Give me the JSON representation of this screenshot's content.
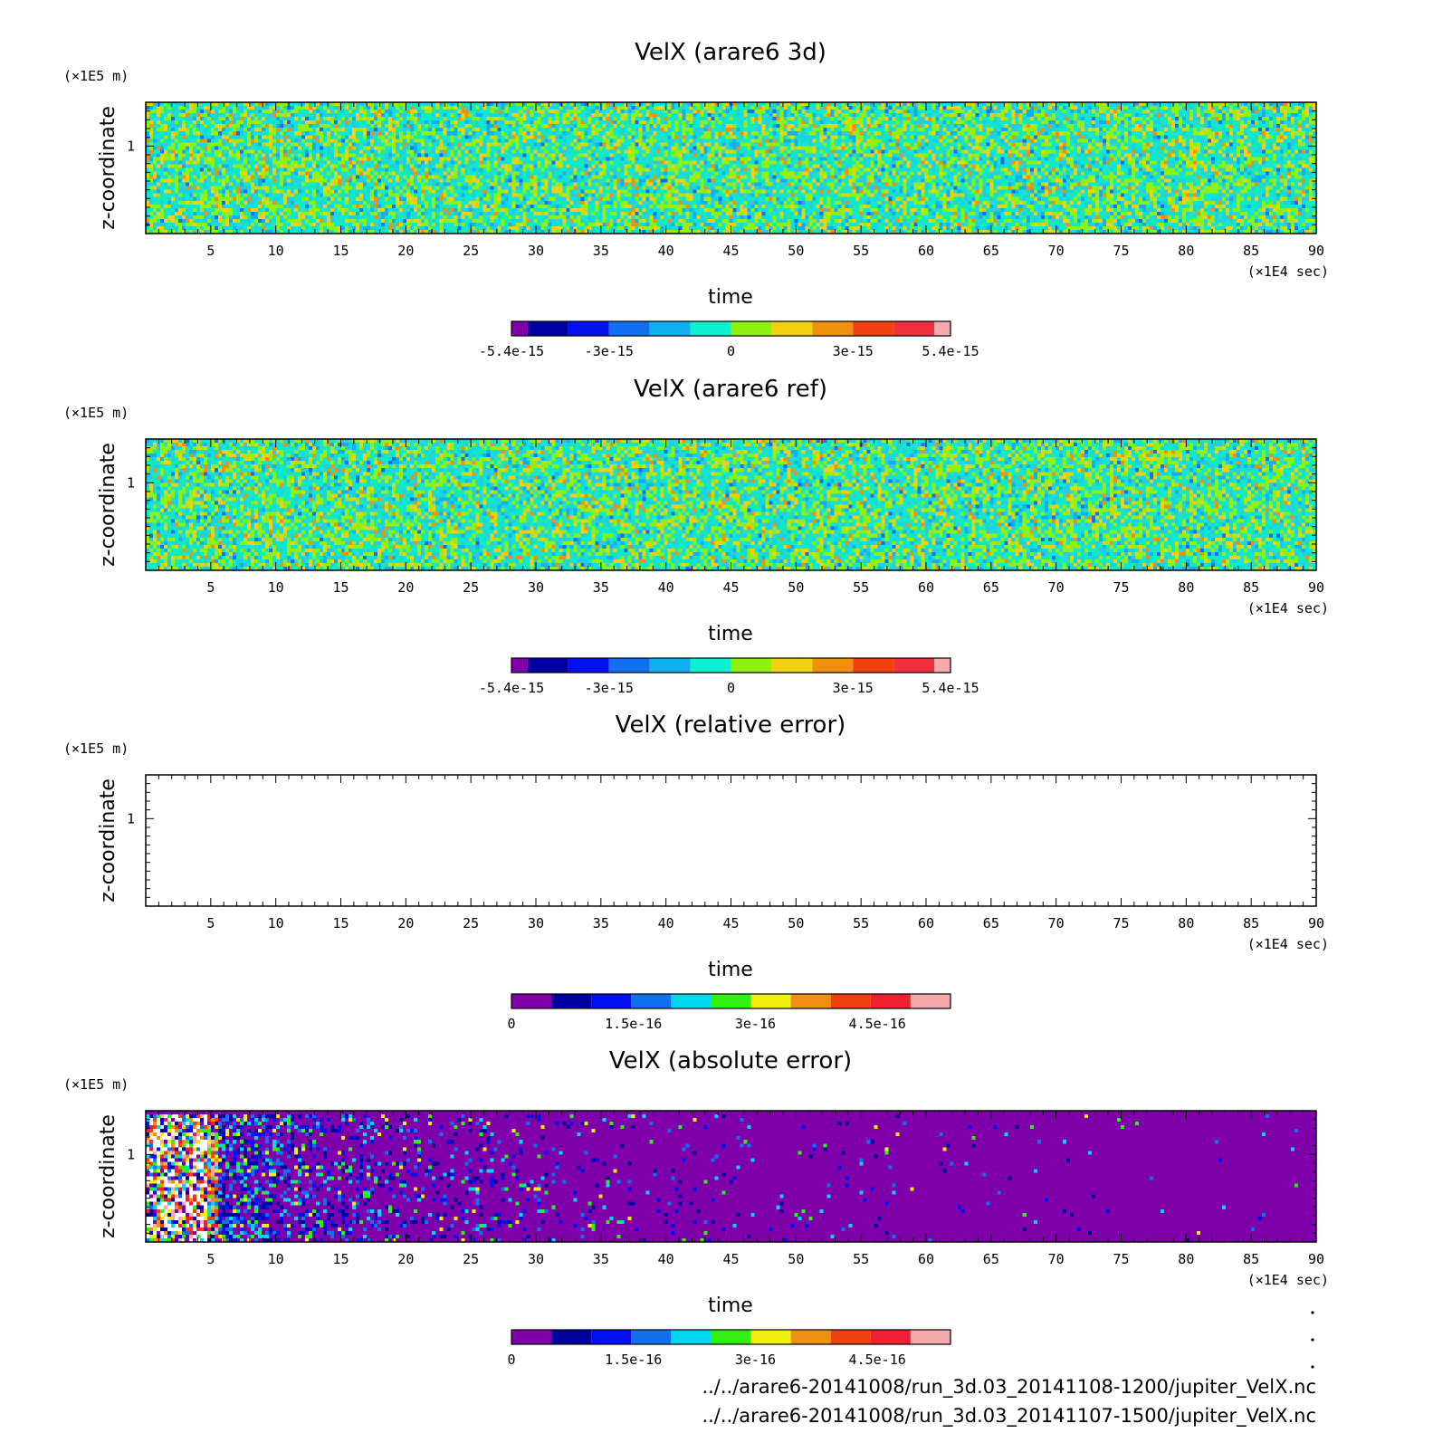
{
  "chart_data": [
    {
      "type": "heatmap",
      "title": "VelX (arare6 3d)",
      "xlabel": "time",
      "ylabel": "z-coordinate",
      "x_unit": "(×1E4 sec)",
      "y_unit": "(×1E5 m)",
      "xlim": [
        0,
        90
      ],
      "ylim": [
        0,
        1.5
      ],
      "x_ticks": [
        5,
        10,
        15,
        20,
        25,
        30,
        35,
        40,
        45,
        50,
        55,
        60,
        65,
        70,
        75,
        80,
        85,
        90
      ],
      "y_ticks": [
        1
      ],
      "field": "noise",
      "colorbar": {
        "colors": [
          "#7f00aa",
          "#0000a0",
          "#0010f0",
          "#1070f0",
          "#10b0f0",
          "#10f0d0",
          "#90f010",
          "#f0d010",
          "#f09010",
          "#f04010",
          "#f03040",
          "#f4aaaa"
        ],
        "tick_labels": [
          "-5.4e-15",
          "-3e-15",
          "0",
          "3e-15",
          "5.4e-15"
        ],
        "tick_values": [
          -5.4e-15,
          -3e-15,
          0,
          3e-15,
          5.4e-15
        ],
        "range": [
          -5.4e-15,
          5.4e-15
        ],
        "edges": [
          -5.4e-15,
          -5e-15,
          -4e-15,
          -3e-15,
          -2e-15,
          -1e-15,
          0,
          1e-15,
          2e-15,
          3e-15,
          4e-15,
          5e-15,
          5.4e-15
        ]
      }
    },
    {
      "type": "heatmap",
      "title": "VelX (arare6 ref)",
      "xlabel": "time",
      "ylabel": "z-coordinate",
      "x_unit": "(×1E4 sec)",
      "y_unit": "(×1E5 m)",
      "xlim": [
        0,
        90
      ],
      "ylim": [
        0,
        1.5
      ],
      "x_ticks": [
        5,
        10,
        15,
        20,
        25,
        30,
        35,
        40,
        45,
        50,
        55,
        60,
        65,
        70,
        75,
        80,
        85,
        90
      ],
      "y_ticks": [
        1
      ],
      "field": "noise",
      "colorbar": {
        "colors": [
          "#7f00aa",
          "#0000a0",
          "#0010f0",
          "#1070f0",
          "#10b0f0",
          "#10f0d0",
          "#90f010",
          "#f0d010",
          "#f09010",
          "#f04010",
          "#f03040",
          "#f4aaaa"
        ],
        "tick_labels": [
          "-5.4e-15",
          "-3e-15",
          "0",
          "3e-15",
          "5.4e-15"
        ],
        "tick_values": [
          -5.4e-15,
          -3e-15,
          0,
          3e-15,
          5.4e-15
        ],
        "range": [
          -5.4e-15,
          5.4e-15
        ],
        "edges": [
          -5.4e-15,
          -5e-15,
          -4e-15,
          -3e-15,
          -2e-15,
          -1e-15,
          0,
          1e-15,
          2e-15,
          3e-15,
          4e-15,
          5e-15,
          5.4e-15
        ]
      }
    },
    {
      "type": "heatmap",
      "title": "VelX (relative error)",
      "xlabel": "time",
      "ylabel": "z-coordinate",
      "x_unit": "(×1E4 sec)",
      "y_unit": "(×1E5 m)",
      "xlim": [
        0,
        90
      ],
      "ylim": [
        0,
        1.5
      ],
      "x_ticks": [
        5,
        10,
        15,
        20,
        25,
        30,
        35,
        40,
        45,
        50,
        55,
        60,
        65,
        70,
        75,
        80,
        85,
        90
      ],
      "y_ticks": [
        1
      ],
      "field": "empty",
      "colorbar": {
        "colors": [
          "#7f00aa",
          "#0000a0",
          "#0010f0",
          "#1070f0",
          "#00d8f0",
          "#30f010",
          "#f0f010",
          "#f09010",
          "#f04010",
          "#f02030",
          "#f4aaaa"
        ],
        "tick_labels": [
          "0",
          "1.5e-16",
          "3e-16",
          "4.5e-16"
        ],
        "tick_values": [
          0,
          1.5e-16,
          3e-16,
          4.5e-16
        ],
        "range": [
          0,
          5.4e-16
        ]
      }
    },
    {
      "type": "heatmap",
      "title": "VelX (absolute error)",
      "xlabel": "time",
      "ylabel": "z-coordinate",
      "x_unit": "(×1E4 sec)",
      "y_unit": "(×1E5 m)",
      "xlim": [
        0,
        90
      ],
      "ylim": [
        0,
        1.5
      ],
      "x_ticks": [
        5,
        10,
        15,
        20,
        25,
        30,
        35,
        40,
        45,
        50,
        55,
        60,
        65,
        70,
        75,
        80,
        85,
        90
      ],
      "y_ticks": [
        1
      ],
      "field": "decay",
      "colorbar": {
        "colors": [
          "#7f00aa",
          "#0000a0",
          "#0010f0",
          "#1070f0",
          "#00d8f0",
          "#30f010",
          "#f0f010",
          "#f09010",
          "#f04010",
          "#f02030",
          "#f4aaaa"
        ],
        "tick_labels": [
          "0",
          "1.5e-16",
          "3e-16",
          "4.5e-16"
        ],
        "tick_values": [
          0,
          1.5e-16,
          3e-16,
          4.5e-16
        ],
        "range": [
          0,
          5.4e-16
        ]
      }
    }
  ],
  "footer": {
    "path1": "../../arare6-20141008/run_3d.03_20141108-1200/jupiter_VelX.nc",
    "path2": "../../arare6-20141008/run_3d.03_20141107-1500/jupiter_VelX.nc"
  }
}
